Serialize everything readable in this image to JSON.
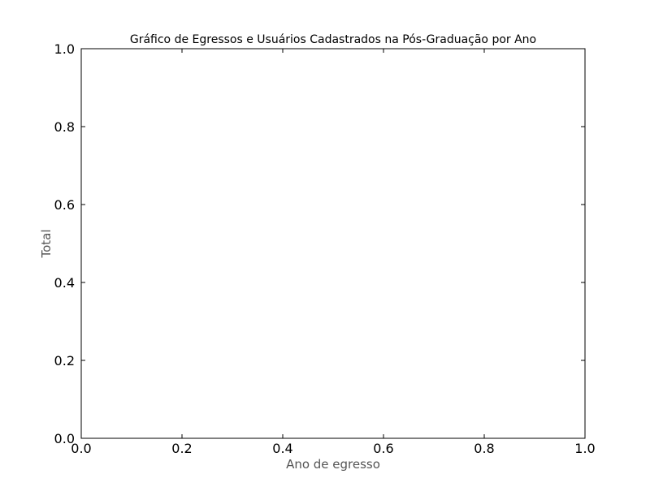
{
  "chart_data": {
    "type": "bar",
    "title": "Gráfico de Egressos e Usuários Cadastrados na Pós-Graduação por Ano",
    "xlabel": "Ano de egresso",
    "ylabel": "Total",
    "xlim": [
      0.0,
      1.0
    ],
    "ylim": [
      0.0,
      1.0
    ],
    "x_ticks": [
      "0.0",
      "0.2",
      "0.4",
      "0.6",
      "0.8",
      "1.0"
    ],
    "y_ticks": [
      "0.0",
      "0.2",
      "0.4",
      "0.6",
      "0.8",
      "1.0"
    ],
    "categories": [],
    "series": [],
    "grid": false
  }
}
